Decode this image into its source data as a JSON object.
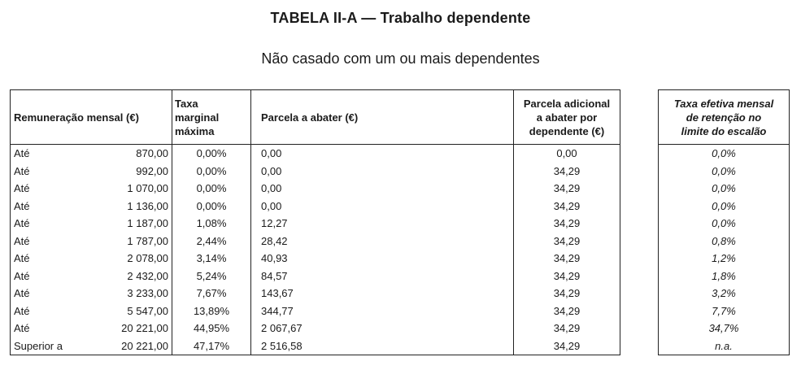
{
  "title": "TABELA II-A — Trabalho dependente",
  "subtitle": "Não casado com um ou mais dependentes",
  "headers": {
    "remuneracao": "Remuneração mensal (€)",
    "taxa": [
      "Taxa",
      "marginal",
      "máxima"
    ],
    "parcela": "Parcela a abater (€)",
    "adicional": [
      "Parcela adicional",
      "a abater por",
      "dependente (€)"
    ],
    "efetiva": [
      "Taxa efetiva mensal",
      "de retenção no",
      "limite do escalão"
    ]
  },
  "rows": [
    {
      "label": "Até",
      "value": "870,00",
      "taxa": "0,00%",
      "parcela": "0,00",
      "adicional": "0,00",
      "efetiva": "0,0%"
    },
    {
      "label": "Até",
      "value": "992,00",
      "taxa": "0,00%",
      "parcela": "0,00",
      "adicional": "34,29",
      "efetiva": "0,0%"
    },
    {
      "label": "Até",
      "value": "1 070,00",
      "taxa": "0,00%",
      "parcela": "0,00",
      "adicional": "34,29",
      "efetiva": "0,0%"
    },
    {
      "label": "Até",
      "value": "1 136,00",
      "taxa": "0,00%",
      "parcela": "0,00",
      "adicional": "34,29",
      "efetiva": "0,0%"
    },
    {
      "label": "Até",
      "value": "1 187,00",
      "taxa": "1,08%",
      "parcela": "12,27",
      "adicional": "34,29",
      "efetiva": "0,0%"
    },
    {
      "label": "Até",
      "value": "1 787,00",
      "taxa": "2,44%",
      "parcela": "28,42",
      "adicional": "34,29",
      "efetiva": "0,8%"
    },
    {
      "label": "Até",
      "value": "2 078,00",
      "taxa": "3,14%",
      "parcela": "40,93",
      "adicional": "34,29",
      "efetiva": "1,2%"
    },
    {
      "label": "Até",
      "value": "2 432,00",
      "taxa": "5,24%",
      "parcela": "84,57",
      "adicional": "34,29",
      "efetiva": "1,8%"
    },
    {
      "label": "Até",
      "value": "3 233,00",
      "taxa": "7,67%",
      "parcela": "143,67",
      "adicional": "34,29",
      "efetiva": "3,2%"
    },
    {
      "label": "Até",
      "value": "5 547,00",
      "taxa": "13,89%",
      "parcela": "344,77",
      "adicional": "34,29",
      "efetiva": "7,7%"
    },
    {
      "label": "Até",
      "value": "20 221,00",
      "taxa": "44,95%",
      "parcela": "2 067,67",
      "adicional": "34,29",
      "efetiva": "34,7%"
    },
    {
      "label": "Superior a",
      "value": "20 221,00",
      "taxa": "47,17%",
      "parcela": "2 516,58",
      "adicional": "34,29",
      "efetiva": "n.a."
    }
  ]
}
